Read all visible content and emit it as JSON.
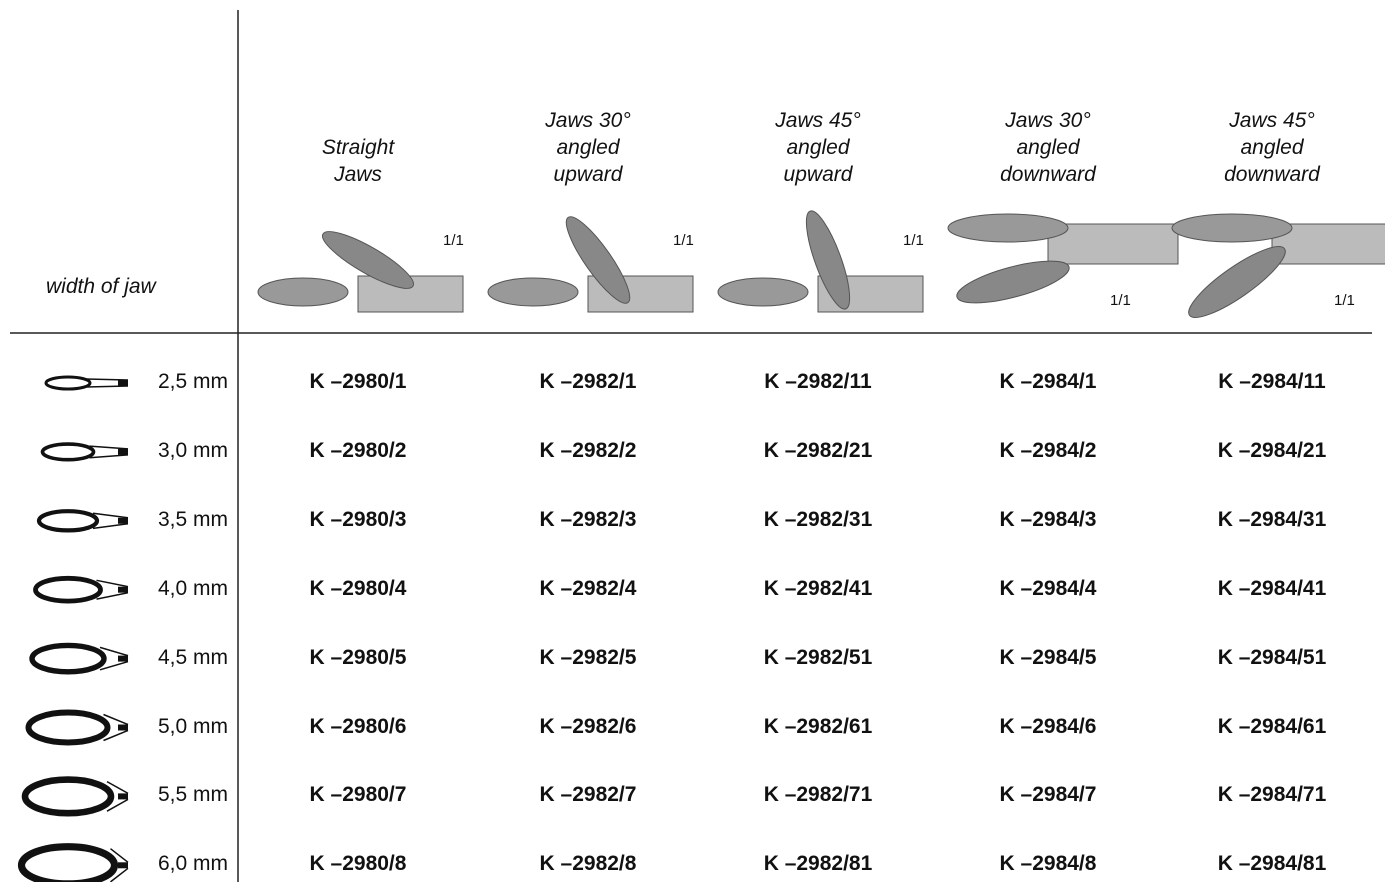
{
  "table": {
    "row_header": "width of jaw",
    "columns": [
      {
        "label": [
          "Straight",
          "Jaws"
        ],
        "scale": "1/1"
      },
      {
        "label": [
          "Jaws 30°",
          "angled",
          "upward"
        ],
        "scale": "1/1"
      },
      {
        "label": [
          "Jaws 45°",
          "angled",
          "upward"
        ],
        "scale": "1/1"
      },
      {
        "label": [
          "Jaws 30°",
          "angled",
          "downward"
        ],
        "scale": "1/1"
      },
      {
        "label": [
          "Jaws 45°",
          "angled",
          "downward"
        ],
        "scale": "1/1"
      }
    ],
    "rows": [
      {
        "width": "2,5 mm",
        "codes": [
          "K –2980/1",
          "K –2982/1",
          "K –2982/11",
          "K –2984/1",
          "K –2984/11"
        ]
      },
      {
        "width": "3,0 mm",
        "codes": [
          "K –2980/2",
          "K –2982/2",
          "K –2982/21",
          "K –2984/2",
          "K –2984/21"
        ]
      },
      {
        "width": "3,5 mm",
        "codes": [
          "K –2980/3",
          "K –2982/3",
          "K –2982/31",
          "K –2984/3",
          "K –2984/31"
        ]
      },
      {
        "width": "4,0 mm",
        "codes": [
          "K –2980/4",
          "K –2982/4",
          "K –2982/41",
          "K –2984/4",
          "K –2984/41"
        ]
      },
      {
        "width": "4,5 mm",
        "codes": [
          "K –2980/5",
          "K –2982/5",
          "K –2982/51",
          "K –2984/5",
          "K –2984/51"
        ]
      },
      {
        "width": "5,0 mm",
        "codes": [
          "K –2980/6",
          "K –2982/6",
          "K –2982/61",
          "K –2984/6",
          "K –2984/61"
        ]
      },
      {
        "width": "5,5 mm",
        "codes": [
          "K –2980/7",
          "K –2982/7",
          "K –2982/71",
          "K –2984/7",
          "K –2984/71"
        ]
      },
      {
        "width": "6,0 mm",
        "codes": [
          "K –2980/8",
          "K –2982/8",
          "K –2982/81",
          "K –2984/8",
          "K –2984/81"
        ]
      }
    ]
  }
}
